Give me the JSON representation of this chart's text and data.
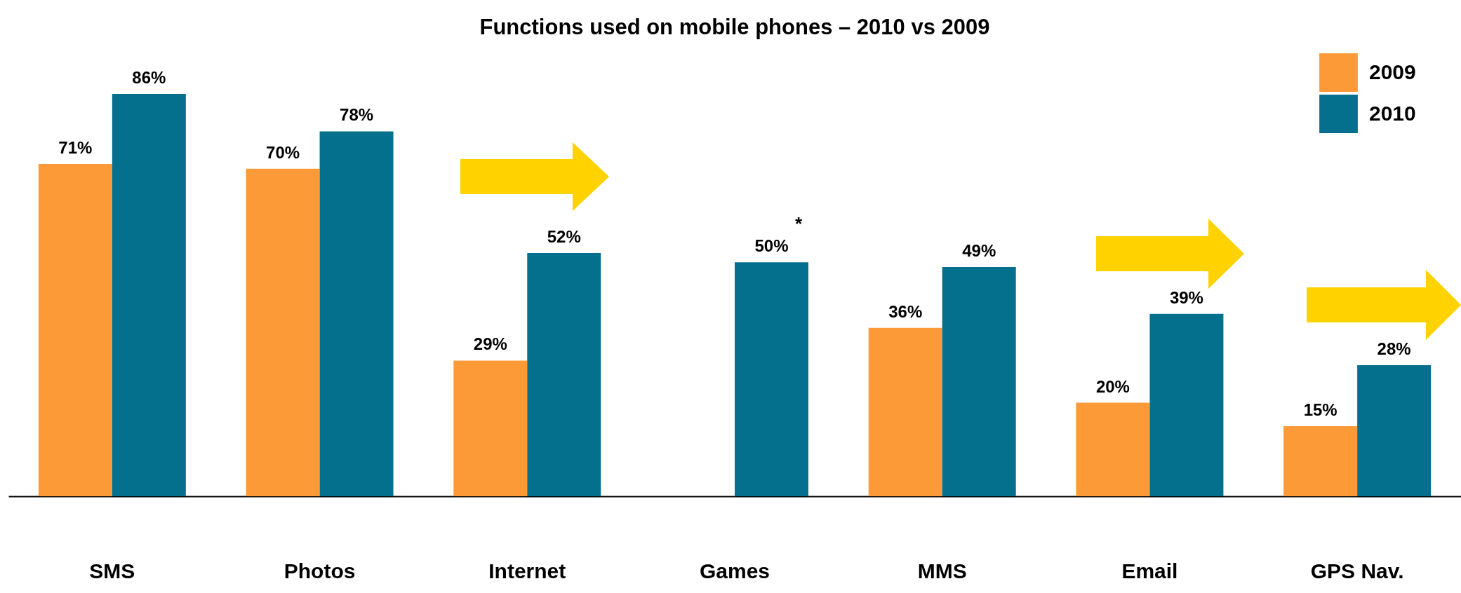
{
  "chart_data": {
    "type": "bar",
    "title": "Functions used on mobile phones – 2010 vs 2009",
    "categories": [
      "SMS",
      "Photos",
      "Internet",
      "Games",
      "MMS",
      "Email",
      "GPS Nav."
    ],
    "series": [
      {
        "name": "2009",
        "color": "#fd9a38",
        "values": [
          71,
          70,
          29,
          null,
          36,
          20,
          15
        ],
        "value_labels": [
          "71%",
          "70%",
          "29%",
          null,
          "36%",
          "20%",
          "15%"
        ]
      },
      {
        "name": "2010",
        "color": "#04708e",
        "values": [
          86,
          78,
          52,
          50,
          49,
          39,
          28
        ],
        "value_labels": [
          "86%",
          "78%",
          "52%",
          "50%",
          "49%",
          "39%",
          "28%"
        ]
      }
    ],
    "annotations": [
      "*"
    ],
    "legend": "top right",
    "grid": false
  }
}
